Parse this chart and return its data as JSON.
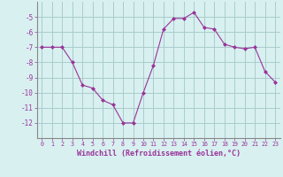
{
  "x": [
    0,
    1,
    2,
    3,
    4,
    5,
    6,
    7,
    8,
    9,
    10,
    11,
    12,
    13,
    14,
    15,
    16,
    17,
    18,
    19,
    20,
    21,
    22,
    23
  ],
  "y": [
    -7,
    -7,
    -7,
    -8,
    -9.5,
    -9.7,
    -10.5,
    -10.8,
    -12,
    -12,
    -10,
    -8.2,
    -5.8,
    -5.1,
    -5.1,
    -4.7,
    -5.7,
    -5.8,
    -6.8,
    -7.0,
    -7.1,
    -7.0,
    -8.6,
    -9.3
  ],
  "line_color": "#993399",
  "marker": "D",
  "marker_size": 2.0,
  "bg_color": "#d8f0f0",
  "grid_color": "#aacccc",
  "tick_color": "#993399",
  "xlabel": "Windchill (Refroidissement éolien,°C)",
  "xlabel_color": "#993399",
  "ylim": [
    -13,
    -4
  ],
  "xlim": [
    -0.5,
    23.5
  ],
  "yticks": [
    -5,
    -6,
    -7,
    -8,
    -9,
    -10,
    -11,
    -12
  ],
  "xticks": [
    0,
    1,
    2,
    3,
    4,
    5,
    6,
    7,
    8,
    9,
    10,
    11,
    12,
    13,
    14,
    15,
    16,
    17,
    18,
    19,
    20,
    21,
    22,
    23
  ],
  "font_family": "monospace"
}
